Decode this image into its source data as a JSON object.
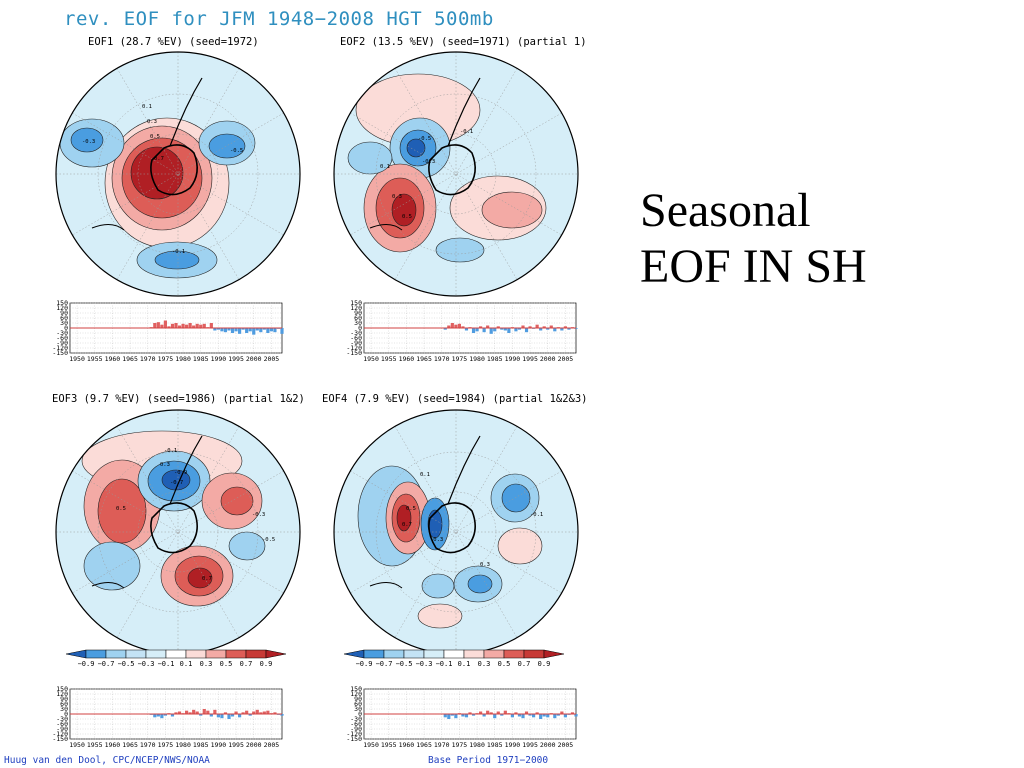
{
  "title": "rev. EOF for JFM 1948−2008 HGT 500mb",
  "side_text": {
    "line1": "Seasonal",
    "line2": "EOF IN SH"
  },
  "credit_left": "Huug van den Dool, CPC/NCEP/NWS/NOAA",
  "credit_right": "Base Period 1971−2000",
  "colors": {
    "red_dark": "#b01f24",
    "red_mid": "#dd5d57",
    "red_light": "#f3aaa5",
    "red_pale": "#fbdcd8",
    "blue_pale": "#d6eef8",
    "blue_light": "#9fd2f0",
    "blue_mid": "#4a9de0",
    "blue_dark": "#1f5fb5",
    "bar_pos": "#e06060",
    "bar_neg": "#4f9ce0",
    "title_color": "#2f8fbf"
  },
  "colorbar": {
    "labels": [
      "−0.9",
      "−0.7",
      "−0.5",
      "−0.3",
      "−0.1",
      "0.1",
      "0.3",
      "0.5",
      "0.7",
      "0.9"
    ]
  },
  "chart_data": [
    {
      "type": "bar",
      "title": "EOF1 (28.7 %EV)   (seed=1972)",
      "map_labels": [
        "0.1",
        "0.3",
        "0.5",
        "0.7",
        "-0.3",
        "-0.5",
        "-0.1"
      ],
      "x_ticks": [
        "1950",
        "1955",
        "1960",
        "1965",
        "1970",
        "1975",
        "1980",
        "1985",
        "1990",
        "1995",
        "2000",
        "2005"
      ],
      "y_ticks": [
        "150",
        "120",
        "90",
        "60",
        "30",
        "0",
        "-30",
        "-60",
        "-90",
        "-120",
        "-150"
      ],
      "ylim": [
        -150,
        150
      ],
      "x": [
        1971,
        1972,
        1973,
        1974,
        1975,
        1976,
        1977,
        1978,
        1979,
        1980,
        1981,
        1982,
        1983,
        1984,
        1985,
        1986,
        1987,
        1988,
        1989,
        1990,
        1991,
        1992,
        1993,
        1994,
        1995,
        1996,
        1997,
        1998,
        1999,
        2000,
        2001,
        2002,
        2003,
        2004,
        2005,
        2006,
        2007,
        2008
      ],
      "values": [
        5,
        30,
        35,
        20,
        45,
        10,
        25,
        30,
        15,
        25,
        20,
        30,
        15,
        25,
        20,
        25,
        5,
        30,
        -15,
        -10,
        -20,
        -25,
        -15,
        -30,
        -20,
        -35,
        -10,
        -30,
        -20,
        -40,
        -15,
        -25,
        -10,
        -30,
        -20,
        -25,
        -5,
        -35
      ]
    },
    {
      "type": "bar",
      "title": "EOF2 (13.5 %EV)   (seed=1971)  (partial 1)",
      "map_labels": [
        "0.1",
        "0.3",
        "0.5",
        "-0.1",
        "-0.3",
        "-0.5"
      ],
      "x_ticks": [
        "1950",
        "1955",
        "1960",
        "1965",
        "1970",
        "1975",
        "1980",
        "1985",
        "1990",
        "1995",
        "2000",
        "2005"
      ],
      "y_ticks": [
        "150",
        "120",
        "90",
        "60",
        "30",
        "0",
        "-30",
        "-60",
        "-90",
        "-120",
        "-150"
      ],
      "ylim": [
        -150,
        150
      ],
      "x": [
        1971,
        1972,
        1973,
        1974,
        1975,
        1976,
        1977,
        1978,
        1979,
        1980,
        1981,
        1982,
        1983,
        1984,
        1985,
        1986,
        1987,
        1988,
        1989,
        1990,
        1991,
        1992,
        1993,
        1994,
        1995,
        1996,
        1997,
        1998,
        1999,
        2000,
        2001,
        2002,
        2003,
        2004,
        2005,
        2006,
        2007,
        2008
      ],
      "values": [
        -10,
        15,
        30,
        20,
        25,
        10,
        -15,
        5,
        -30,
        -20,
        10,
        -25,
        15,
        -35,
        -20,
        10,
        -10,
        -15,
        -30,
        5,
        -20,
        -10,
        15,
        -25,
        10,
        -5,
        20,
        -15,
        10,
        -10,
        15,
        -20,
        5,
        -15,
        10,
        -10,
        5,
        -5
      ]
    },
    {
      "type": "bar",
      "title": "EOF3 (9.7 %EV)   (seed=1986)  (partial 1&2)",
      "map_labels": [
        "0.3",
        "0.5",
        "0.7",
        "-0.1",
        "-0.3",
        "-0.5",
        "-0.7",
        "-0.9"
      ],
      "x_ticks": [
        "1950",
        "1955",
        "1960",
        "1965",
        "1970",
        "1975",
        "1980",
        "1985",
        "1990",
        "1995",
        "2000",
        "2005"
      ],
      "y_ticks": [
        "150",
        "120",
        "90",
        "60",
        "30",
        "0",
        "-30",
        "-60",
        "-90",
        "-120",
        "-150"
      ],
      "ylim": [
        -150,
        150
      ],
      "x": [
        1971,
        1972,
        1973,
        1974,
        1975,
        1976,
        1977,
        1978,
        1979,
        1980,
        1981,
        1982,
        1983,
        1984,
        1985,
        1986,
        1987,
        1988,
        1989,
        1990,
        1991,
        1992,
        1993,
        1994,
        1995,
        1996,
        1997,
        1998,
        1999,
        2000,
        2001,
        2002,
        2003,
        2004,
        2005,
        2006,
        2007,
        2008
      ],
      "values": [
        -5,
        -20,
        -15,
        -25,
        -10,
        5,
        -15,
        10,
        15,
        5,
        20,
        10,
        25,
        15,
        -10,
        30,
        20,
        -15,
        25,
        -20,
        -25,
        10,
        -30,
        -15,
        15,
        -20,
        10,
        20,
        -10,
        15,
        25,
        10,
        15,
        20,
        5,
        10,
        -5,
        -10
      ]
    },
    {
      "type": "bar",
      "title": "EOF4 (7.9 %EV)   (seed=1984)  (partial 1&2&3)",
      "map_labels": [
        "0.1",
        "0.3",
        "0.5",
        "0.7",
        "-0.1",
        "-0.3"
      ],
      "x_ticks": [
        "1950",
        "1955",
        "1960",
        "1965",
        "1970",
        "1975",
        "1980",
        "1985",
        "1990",
        "1995",
        "2000",
        "2005"
      ],
      "y_ticks": [
        "150",
        "120",
        "90",
        "60",
        "30",
        "0",
        "-30",
        "-60",
        "-90",
        "-120",
        "-150"
      ],
      "ylim": [
        -150,
        150
      ],
      "x": [
        1971,
        1972,
        1973,
        1974,
        1975,
        1976,
        1977,
        1978,
        1979,
        1980,
        1981,
        1982,
        1983,
        1984,
        1985,
        1986,
        1987,
        1988,
        1989,
        1990,
        1991,
        1992,
        1993,
        1994,
        1995,
        1996,
        1997,
        1998,
        1999,
        2000,
        2001,
        2002,
        2003,
        2004,
        2005,
        2006,
        2007,
        2008
      ],
      "values": [
        -20,
        -30,
        -10,
        -25,
        5,
        -15,
        -20,
        10,
        -10,
        5,
        15,
        -15,
        20,
        10,
        -25,
        15,
        -10,
        20,
        5,
        -20,
        10,
        -15,
        -25,
        15,
        -10,
        -20,
        10,
        -30,
        -15,
        -20,
        5,
        -25,
        -10,
        15,
        -20,
        -5,
        10,
        -15
      ]
    }
  ]
}
